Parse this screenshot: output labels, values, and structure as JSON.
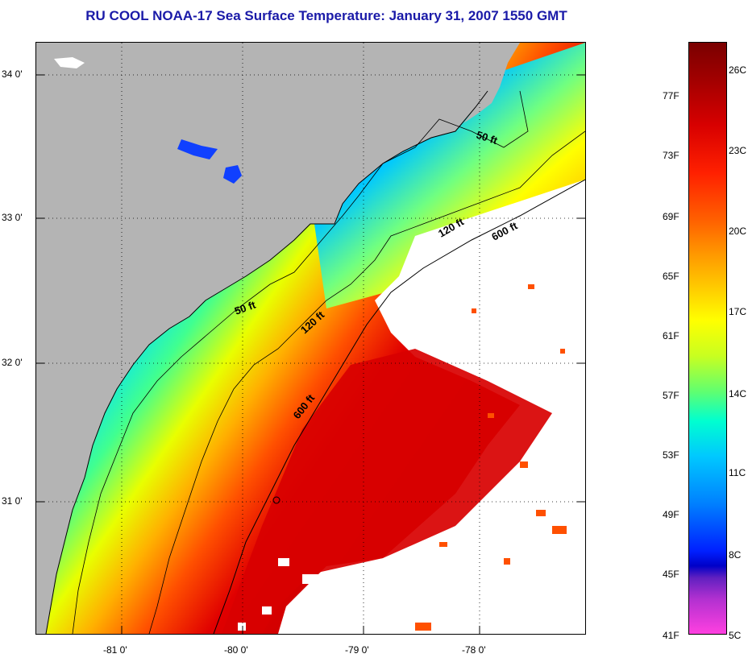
{
  "title": "RU COOL  NOAA-17  Sea Surface Temperature:  January 31, 2007 1550 GMT",
  "map": {
    "lat_labels": [
      "34 0'",
      "33 0'",
      "32 0'",
      "31 0'"
    ],
    "lon_labels": [
      "-81 0'",
      "-80 0'",
      "-79 0'",
      "-78 0'"
    ],
    "contour_labels": [
      "50 ft",
      "50 ft",
      "120 ft",
      "120 ft",
      "600 ft",
      "600 ft"
    ],
    "colors": {
      "land": "#b4b4b4",
      "cloud": "#ffffff",
      "warm": "#d80000",
      "cool": "#00c8ff"
    }
  },
  "colorbar": {
    "fahrenheit": [
      "77F",
      "73F",
      "69F",
      "65F",
      "61F",
      "57F",
      "53F",
      "49F",
      "45F",
      "41F"
    ],
    "celsius": [
      "26C",
      "23C",
      "20C",
      "17C",
      "14C",
      "11C",
      "8C",
      "5C"
    ]
  }
}
